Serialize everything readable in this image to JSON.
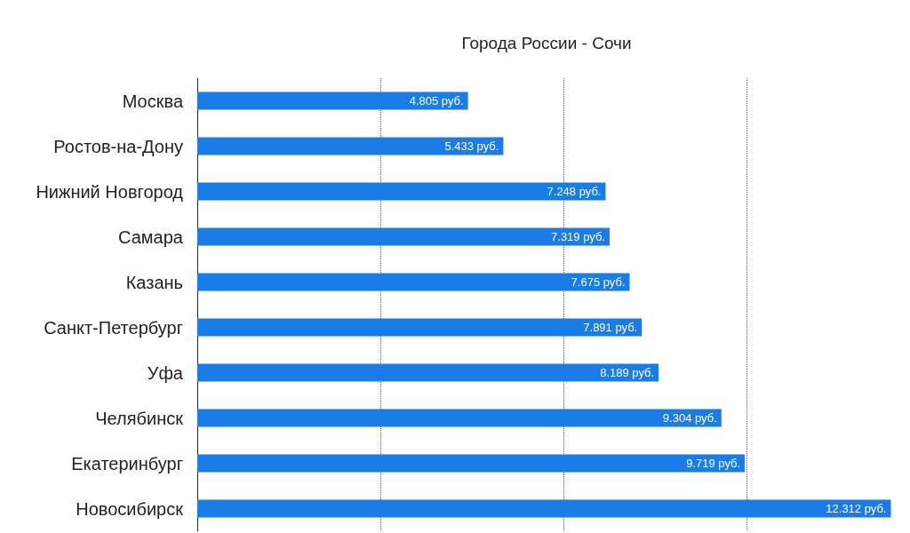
{
  "chart_data": {
    "type": "bar",
    "orientation": "horizontal",
    "title": "Города России - Сочи",
    "categories": [
      "Москва",
      "Ростов-на-Дону",
      "Нижний Новгород",
      "Самара",
      "Казань",
      "Санкт-Петербург",
      "Уфа",
      "Челябинск",
      "Екатеринбург",
      "Новосибирск"
    ],
    "values": [
      4805,
      5433,
      7248,
      7319,
      7675,
      7891,
      8189,
      9304,
      9719,
      12312
    ],
    "value_labels": [
      "4.805 руб.",
      "5.433 руб.",
      "7.248 руб.",
      "7.319 руб.",
      "7.675 руб.",
      "7.891 руб.",
      "8.189 руб.",
      "9.304 руб.",
      "9.719 руб.",
      "12.312 руб."
    ],
    "color": "#1a7ce6",
    "xlim": [
      0,
      12320
    ],
    "xticks": [
      {
        "value": 3250,
        "label": null
      },
      {
        "value": 6500,
        "label": null
      },
      {
        "value": 9750,
        "label": null
      }
    ],
    "grid": "x",
    "tick_labels": "y"
  }
}
